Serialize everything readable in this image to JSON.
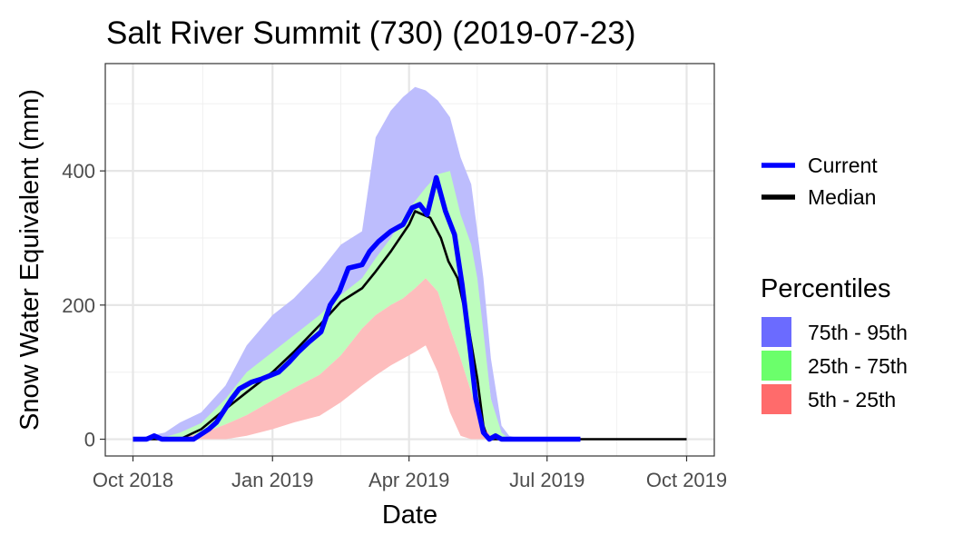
{
  "chart_data": {
    "type": "area",
    "title": "Salt River Summit (730) (2019-07-23)",
    "xlabel": "Date",
    "ylabel": "Snow Water Equivalent (mm)",
    "xlim": [
      "2018-10-01",
      "2019-10-01"
    ],
    "ylim": [
      -25,
      560
    ],
    "x_ticks": [
      "2018-10-01",
      "2019-01-01",
      "2019-04-01",
      "2019-07-01",
      "2019-10-01"
    ],
    "x_tick_labels": [
      "Oct 2018",
      "Jan 2019",
      "Apr 2019",
      "Jul 2019",
      "Oct 2019"
    ],
    "y_ticks": [
      0,
      200,
      400
    ],
    "y_tick_labels": [
      "0",
      "200",
      "400"
    ],
    "grid": true,
    "legend_position": "right",
    "legend_lines_title": "",
    "legend_bands_title": "Percentiles",
    "colors": {
      "band_75_95": "#bdbdfd",
      "band_25_75": "#bdfdbd",
      "band_5_25": "#fdbdbd",
      "swatch_75_95": "#6b6bff",
      "swatch_25_75": "#6bff6b",
      "swatch_5_25": "#ff6b6b",
      "current": "#0000ff",
      "median": "#000000"
    },
    "bands": [
      {
        "name": "75th - 95th",
        "x": [
          "2018-10-01",
          "2018-10-22",
          "2018-11-01",
          "2018-11-15",
          "2018-12-01",
          "2018-12-15",
          "2019-01-01",
          "2019-01-15",
          "2019-02-01",
          "2019-02-15",
          "2019-03-01",
          "2019-03-10",
          "2019-03-20",
          "2019-03-28",
          "2019-04-05",
          "2019-04-12",
          "2019-04-20",
          "2019-04-28",
          "2019-05-05",
          "2019-05-12",
          "2019-05-16",
          "2019-05-20",
          "2019-05-25",
          "2019-06-01",
          "2019-06-06",
          "2019-06-15",
          "2019-07-01",
          "2019-10-01"
        ],
        "lower": [
          0,
          0,
          5,
          12,
          30,
          48,
          78,
          96,
          120,
          160,
          210,
          260,
          270,
          285,
          300,
          320,
          325,
          300,
          280,
          240,
          200,
          150,
          60,
          3,
          0,
          0,
          0,
          0
        ],
        "upper": [
          0,
          10,
          25,
          40,
          80,
          140,
          185,
          210,
          250,
          290,
          310,
          450,
          490,
          510,
          525,
          520,
          505,
          480,
          420,
          380,
          310,
          240,
          120,
          20,
          5,
          0,
          0,
          0
        ]
      },
      {
        "name": "25th - 75th",
        "x": [
          "2018-10-01",
          "2018-10-22",
          "2018-11-01",
          "2018-11-15",
          "2018-12-01",
          "2018-12-15",
          "2019-01-01",
          "2019-01-15",
          "2019-02-01",
          "2019-02-15",
          "2019-03-01",
          "2019-03-10",
          "2019-03-20",
          "2019-03-28",
          "2019-04-05",
          "2019-04-12",
          "2019-04-20",
          "2019-04-28",
          "2019-05-05",
          "2019-05-12",
          "2019-05-16",
          "2019-05-20",
          "2019-05-25",
          "2019-06-01",
          "2019-06-06",
          "2019-06-15",
          "2019-07-01",
          "2019-10-01"
        ],
        "lower": [
          0,
          0,
          3,
          8,
          22,
          36,
          58,
          76,
          96,
          125,
          165,
          185,
          200,
          210,
          225,
          240,
          220,
          165,
          120,
          70,
          40,
          20,
          5,
          0,
          0,
          0,
          0,
          0
        ],
        "upper": [
          0,
          3,
          10,
          24,
          60,
          100,
          130,
          155,
          185,
          215,
          240,
          270,
          300,
          330,
          355,
          375,
          395,
          400,
          335,
          290,
          240,
          160,
          60,
          10,
          0,
          0,
          0,
          0
        ]
      },
      {
        "name": "5th - 25th",
        "x": [
          "2018-10-01",
          "2018-10-22",
          "2018-11-01",
          "2018-11-15",
          "2018-12-01",
          "2018-12-15",
          "2019-01-01",
          "2019-01-15",
          "2019-02-01",
          "2019-02-15",
          "2019-03-01",
          "2019-03-10",
          "2019-03-20",
          "2019-03-28",
          "2019-04-05",
          "2019-04-12",
          "2019-04-20",
          "2019-04-28",
          "2019-05-05",
          "2019-05-12",
          "2019-05-16",
          "2019-05-20",
          "2019-05-25",
          "2019-06-01",
          "2019-06-06",
          "2019-06-15",
          "2019-07-01",
          "2019-10-01"
        ],
        "lower": [
          0,
          0,
          0,
          0,
          0,
          5,
          15,
          25,
          35,
          55,
          80,
          95,
          110,
          120,
          130,
          140,
          100,
          40,
          5,
          0,
          0,
          0,
          0,
          0,
          0,
          0,
          0,
          0
        ],
        "upper": [
          0,
          0,
          3,
          8,
          22,
          36,
          58,
          76,
          96,
          125,
          165,
          185,
          200,
          210,
          225,
          240,
          220,
          165,
          120,
          70,
          40,
          20,
          5,
          0,
          0,
          0,
          0,
          0
        ]
      }
    ],
    "series": [
      {
        "name": "Median",
        "x": [
          "2018-10-01",
          "2018-11-01",
          "2018-11-15",
          "2018-12-01",
          "2018-12-15",
          "2019-01-01",
          "2019-01-15",
          "2019-02-01",
          "2019-02-15",
          "2019-03-01",
          "2019-03-10",
          "2019-03-20",
          "2019-04-01",
          "2019-04-05",
          "2019-04-15",
          "2019-04-22",
          "2019-04-27",
          "2019-05-03",
          "2019-05-10",
          "2019-05-16",
          "2019-05-20",
          "2019-05-23",
          "2019-06-01",
          "2019-07-01",
          "2019-10-01"
        ],
        "y": [
          0,
          0,
          15,
          45,
          70,
          100,
          130,
          170,
          205,
          225,
          250,
          280,
          320,
          340,
          330,
          300,
          265,
          240,
          170,
          90,
          20,
          0,
          0,
          0,
          0
        ]
      },
      {
        "name": "Current",
        "x": [
          "2018-10-01",
          "2018-10-10",
          "2018-10-15",
          "2018-10-20",
          "2018-10-25",
          "2018-11-05",
          "2018-11-10",
          "2018-11-20",
          "2018-11-25",
          "2018-12-05",
          "2018-12-10",
          "2018-12-18",
          "2018-12-25",
          "2019-01-05",
          "2019-01-12",
          "2019-01-18",
          "2019-01-25",
          "2019-02-02",
          "2019-02-08",
          "2019-02-14",
          "2019-02-20",
          "2019-03-01",
          "2019-03-06",
          "2019-03-12",
          "2019-03-20",
          "2019-03-28",
          "2019-04-03",
          "2019-04-08",
          "2019-04-13",
          "2019-04-19",
          "2019-04-25",
          "2019-05-01",
          "2019-05-06",
          "2019-05-11",
          "2019-05-15",
          "2019-05-20",
          "2019-05-24",
          "2019-05-28",
          "2019-06-01",
          "2019-06-06",
          "2019-06-15",
          "2019-07-01",
          "2019-07-23"
        ],
        "y": [
          0,
          0,
          5,
          0,
          0,
          0,
          0,
          15,
          25,
          60,
          75,
          85,
          90,
          100,
          115,
          130,
          145,
          160,
          200,
          220,
          255,
          260,
          280,
          295,
          310,
          320,
          345,
          350,
          335,
          390,
          340,
          305,
          230,
          140,
          60,
          10,
          0,
          5,
          0,
          0,
          0,
          0,
          0
        ]
      }
    ]
  }
}
